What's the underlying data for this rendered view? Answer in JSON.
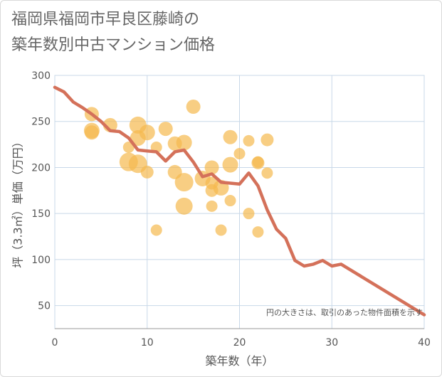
{
  "title_lines": [
    "福岡県福岡市早良区藤崎の",
    "築年数別中古マンション価格"
  ],
  "chart_data": {
    "type": "scatter",
    "xlabel": "築年数（年）",
    "ylabel": "坪（3.3㎡）単価（万円）",
    "xlim": [
      0,
      40
    ],
    "ylim": [
      25,
      300
    ],
    "xticks": [
      0,
      10,
      20,
      30,
      40
    ],
    "yticks": [
      50,
      100,
      150,
      200,
      250,
      300
    ],
    "grid": true,
    "note": "円の大きさは、取引のあった物件面積を示す",
    "colors": {
      "bubble": "#f5b94f",
      "line": "#d4715a",
      "grid": "#c8d8e8",
      "axis": "#999999"
    },
    "bubbles": [
      {
        "x": 4,
        "y": 258,
        "s": 1.0
      },
      {
        "x": 4,
        "y": 240,
        "s": 1.1
      },
      {
        "x": 4,
        "y": 238,
        "s": 1.0
      },
      {
        "x": 6,
        "y": 246,
        "s": 1.0
      },
      {
        "x": 8,
        "y": 222,
        "s": 0.8
      },
      {
        "x": 8,
        "y": 206,
        "s": 1.3
      },
      {
        "x": 9,
        "y": 246,
        "s": 1.2
      },
      {
        "x": 9,
        "y": 232,
        "s": 1.1
      },
      {
        "x": 9,
        "y": 204,
        "s": 1.3
      },
      {
        "x": 10,
        "y": 238,
        "s": 1.1
      },
      {
        "x": 10,
        "y": 195,
        "s": 0.9
      },
      {
        "x": 11,
        "y": 222,
        "s": 0.8
      },
      {
        "x": 11,
        "y": 132,
        "s": 0.8
      },
      {
        "x": 12,
        "y": 242,
        "s": 1.0
      },
      {
        "x": 13,
        "y": 226,
        "s": 1.0
      },
      {
        "x": 13,
        "y": 195,
        "s": 1.0
      },
      {
        "x": 14,
        "y": 227,
        "s": 1.1
      },
      {
        "x": 14,
        "y": 184,
        "s": 1.3
      },
      {
        "x": 14,
        "y": 158,
        "s": 1.2
      },
      {
        "x": 15,
        "y": 266,
        "s": 1.0
      },
      {
        "x": 16,
        "y": 188,
        "s": 1.1
      },
      {
        "x": 17,
        "y": 200,
        "s": 1.0
      },
      {
        "x": 17,
        "y": 183,
        "s": 0.9
      },
      {
        "x": 17,
        "y": 175,
        "s": 0.9
      },
      {
        "x": 17,
        "y": 158,
        "s": 0.8
      },
      {
        "x": 18,
        "y": 178,
        "s": 1.1
      },
      {
        "x": 18,
        "y": 132,
        "s": 0.8
      },
      {
        "x": 19,
        "y": 233,
        "s": 1.0
      },
      {
        "x": 19,
        "y": 203,
        "s": 1.1
      },
      {
        "x": 19,
        "y": 164,
        "s": 0.8
      },
      {
        "x": 20,
        "y": 215,
        "s": 0.8
      },
      {
        "x": 21,
        "y": 229,
        "s": 0.8
      },
      {
        "x": 21,
        "y": 150,
        "s": 0.8
      },
      {
        "x": 22,
        "y": 206,
        "s": 0.8
      },
      {
        "x": 22,
        "y": 205,
        "s": 0.9
      },
      {
        "x": 22,
        "y": 130,
        "s": 0.8
      },
      {
        "x": 23,
        "y": 230,
        "s": 0.9
      },
      {
        "x": 23,
        "y": 194,
        "s": 0.8
      }
    ],
    "line": {
      "x": [
        0,
        1,
        2,
        3,
        4,
        5,
        6,
        7,
        8,
        9,
        10,
        11,
        12,
        13,
        14,
        15,
        16,
        17,
        18,
        19,
        20,
        21,
        22,
        23,
        24,
        25,
        26,
        27,
        28,
        29,
        30,
        31,
        40
      ],
      "y": [
        287,
        282,
        271,
        265,
        258,
        250,
        240,
        239,
        232,
        219,
        218,
        217,
        207,
        217,
        219,
        206,
        190,
        193,
        184,
        183,
        182,
        194,
        180,
        154,
        133,
        123,
        99,
        93,
        95,
        99,
        93,
        95,
        40
      ]
    }
  }
}
